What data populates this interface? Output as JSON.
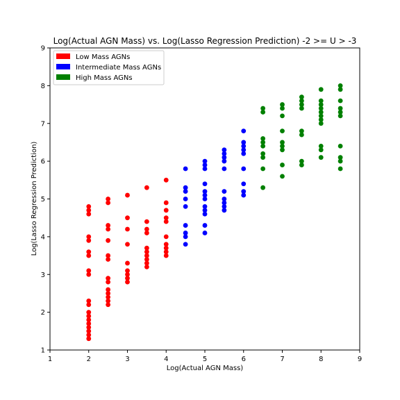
{
  "chart_data": {
    "type": "scatter",
    "title": "Log(Actual AGN Mass) vs. Log(Lasso Regression Prediction) -2 >= U > -3",
    "xlabel": "Log(Actual AGN Mass)",
    "ylabel": "Log(Lasso Regression Prediction)",
    "xlim": [
      1,
      9
    ],
    "ylim": [
      1,
      9
    ],
    "xticks": [
      "1",
      "2",
      "3",
      "4",
      "5",
      "6",
      "7",
      "8",
      "9"
    ],
    "yticks": [
      "1",
      "2",
      "3",
      "4",
      "5",
      "6",
      "7",
      "8",
      "9"
    ],
    "grid": false,
    "legend_position": "top-left",
    "series": [
      {
        "name": "Low Mass AGNs",
        "color": "#ff0000",
        "points": [
          [
            2,
            1.3
          ],
          [
            2,
            1.4
          ],
          [
            2,
            1.5
          ],
          [
            2,
            1.6
          ],
          [
            2,
            1.7
          ],
          [
            2,
            1.8
          ],
          [
            2,
            1.9
          ],
          [
            2,
            2.0
          ],
          [
            2,
            2.2
          ],
          [
            2,
            2.3
          ],
          [
            2,
            3.0
          ],
          [
            2,
            3.1
          ],
          [
            2,
            3.5
          ],
          [
            2,
            3.6
          ],
          [
            2,
            3.9
          ],
          [
            2,
            4.0
          ],
          [
            2,
            4.6
          ],
          [
            2,
            4.7
          ],
          [
            2,
            4.8
          ],
          [
            2.5,
            2.2
          ],
          [
            2.5,
            2.3
          ],
          [
            2.5,
            2.4
          ],
          [
            2.5,
            2.5
          ],
          [
            2.5,
            2.6
          ],
          [
            2.5,
            2.8
          ],
          [
            2.5,
            2.9
          ],
          [
            2.5,
            3.4
          ],
          [
            2.5,
            3.5
          ],
          [
            2.5,
            3.9
          ],
          [
            2.5,
            4.2
          ],
          [
            2.5,
            4.3
          ],
          [
            2.5,
            4.9
          ],
          [
            2.5,
            5.0
          ],
          [
            3,
            2.8
          ],
          [
            3,
            2.9
          ],
          [
            3,
            3.0
          ],
          [
            3,
            3.1
          ],
          [
            3,
            3.3
          ],
          [
            3,
            3.8
          ],
          [
            3,
            4.2
          ],
          [
            3,
            4.5
          ],
          [
            3,
            5.1
          ],
          [
            3.5,
            3.2
          ],
          [
            3.5,
            3.3
          ],
          [
            3.5,
            3.4
          ],
          [
            3.5,
            3.5
          ],
          [
            3.5,
            3.6
          ],
          [
            3.5,
            3.7
          ],
          [
            3.5,
            4.1
          ],
          [
            3.5,
            4.2
          ],
          [
            3.5,
            4.4
          ],
          [
            3.5,
            5.3
          ],
          [
            4,
            3.5
          ],
          [
            4,
            3.6
          ],
          [
            4,
            3.7
          ],
          [
            4,
            3.8
          ],
          [
            4,
            4.0
          ],
          [
            4,
            4.4
          ],
          [
            4,
            4.5
          ],
          [
            4,
            4.7
          ],
          [
            4,
            4.9
          ],
          [
            4,
            5.5
          ]
        ]
      },
      {
        "name": "Intermediate Mass AGNs",
        "color": "#0000ff",
        "points": [
          [
            4.5,
            3.8
          ],
          [
            4.5,
            4.0
          ],
          [
            4.5,
            4.1
          ],
          [
            4.5,
            4.3
          ],
          [
            4.5,
            4.8
          ],
          [
            4.5,
            5.0
          ],
          [
            4.5,
            5.2
          ],
          [
            4.5,
            5.3
          ],
          [
            4.5,
            5.8
          ],
          [
            5,
            4.1
          ],
          [
            5,
            4.3
          ],
          [
            5,
            4.6
          ],
          [
            5,
            4.7
          ],
          [
            5,
            4.8
          ],
          [
            5,
            5.0
          ],
          [
            5,
            5.1
          ],
          [
            5,
            5.2
          ],
          [
            5,
            5.4
          ],
          [
            5,
            5.8
          ],
          [
            5,
            5.9
          ],
          [
            5,
            6.0
          ],
          [
            5.5,
            4.7
          ],
          [
            5.5,
            4.8
          ],
          [
            5.5,
            4.9
          ],
          [
            5.5,
            5.0
          ],
          [
            5.5,
            5.2
          ],
          [
            5.5,
            5.8
          ],
          [
            5.5,
            6.0
          ],
          [
            5.5,
            6.1
          ],
          [
            5.5,
            6.2
          ],
          [
            5.5,
            6.3
          ],
          [
            6,
            5.1
          ],
          [
            6,
            5.2
          ],
          [
            6,
            5.4
          ],
          [
            6,
            5.8
          ],
          [
            6,
            6.2
          ],
          [
            6,
            6.3
          ],
          [
            6,
            6.4
          ],
          [
            6,
            6.5
          ],
          [
            6,
            6.8
          ]
        ]
      },
      {
        "name": "High Mass AGNs",
        "color": "#008000",
        "points": [
          [
            6.5,
            5.3
          ],
          [
            6.5,
            5.8
          ],
          [
            6.5,
            6.1
          ],
          [
            6.5,
            6.2
          ],
          [
            6.5,
            6.4
          ],
          [
            6.5,
            6.5
          ],
          [
            6.5,
            6.6
          ],
          [
            6.5,
            7.3
          ],
          [
            6.5,
            7.4
          ],
          [
            7,
            5.6
          ],
          [
            7,
            5.9
          ],
          [
            7,
            6.3
          ],
          [
            7,
            6.4
          ],
          [
            7,
            6.5
          ],
          [
            7,
            6.8
          ],
          [
            7,
            7.2
          ],
          [
            7,
            7.4
          ],
          [
            7,
            7.5
          ],
          [
            7.5,
            5.9
          ],
          [
            7.5,
            6.0
          ],
          [
            7.5,
            6.7
          ],
          [
            7.5,
            6.8
          ],
          [
            7.5,
            7.4
          ],
          [
            7.5,
            7.5
          ],
          [
            7.5,
            7.6
          ],
          [
            7.5,
            7.7
          ],
          [
            8,
            6.1
          ],
          [
            8,
            6.3
          ],
          [
            8,
            6.4
          ],
          [
            8,
            7.0
          ],
          [
            8,
            7.1
          ],
          [
            8,
            7.2
          ],
          [
            8,
            7.3
          ],
          [
            8,
            7.4
          ],
          [
            8,
            7.5
          ],
          [
            8,
            7.6
          ],
          [
            8,
            7.9
          ],
          [
            8.5,
            5.8
          ],
          [
            8.5,
            6.0
          ],
          [
            8.5,
            6.1
          ],
          [
            8.5,
            6.4
          ],
          [
            8.5,
            7.2
          ],
          [
            8.5,
            7.3
          ],
          [
            8.5,
            7.4
          ],
          [
            8.5,
            7.6
          ],
          [
            8.5,
            7.9
          ],
          [
            8.5,
            8.0
          ]
        ]
      }
    ]
  }
}
